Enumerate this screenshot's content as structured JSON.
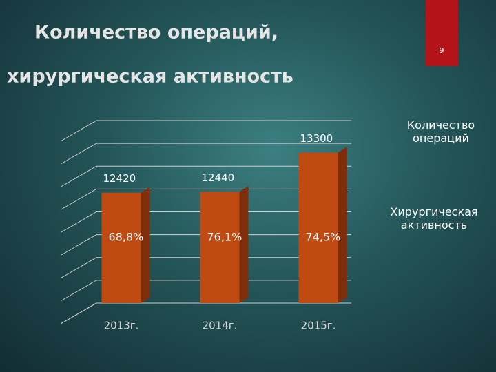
{
  "slide_number": "9",
  "chart_data": {
    "type": "bar",
    "title": "Количество операций,",
    "subtitle": "хирургическая активность",
    "categories": [
      "2013г.",
      "2014г.",
      "2015г."
    ],
    "series": [
      {
        "name": "Количество операций",
        "color": "#bf4a12",
        "values": [
          12420,
          12440,
          13300
        ]
      },
      {
        "name": "Хирургическая активность",
        "values": [
          68.8,
          76.1,
          74.5
        ],
        "value_labels": [
          "68,8%",
          "76,1%",
          "74,5%"
        ]
      }
    ],
    "ylim": [
      10000,
      14000
    ],
    "yticks": [
      10000,
      10500,
      11000,
      11500,
      12000,
      12500,
      13000,
      13500,
      14000
    ],
    "grid": true
  }
}
